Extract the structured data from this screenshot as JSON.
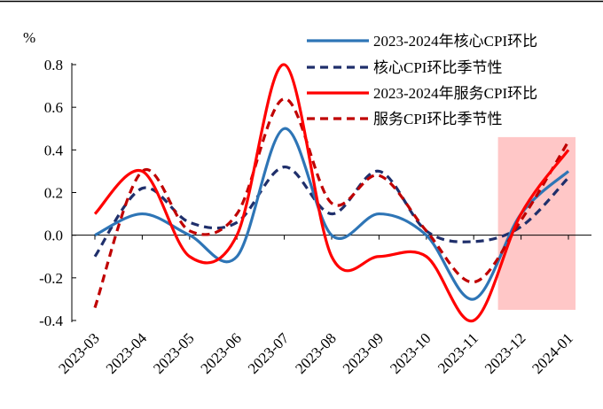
{
  "chart_data": {
    "type": "line",
    "unit_label": "%",
    "x": [
      "2023-03",
      "2023-04",
      "2023-05",
      "2023-06",
      "2023-07",
      "2023-08",
      "2023-09",
      "2023-10",
      "2023-11",
      "2023-12",
      "2024-01"
    ],
    "ylim": [
      -0.4,
      0.8
    ],
    "yticks": [
      "0.8",
      "0.6",
      "0.4",
      "0.2",
      "0.0",
      "-0.2",
      "-0.4"
    ],
    "yticks_values": [
      0.8,
      0.6,
      0.4,
      0.2,
      0.0,
      -0.2,
      -0.4
    ],
    "series": [
      {
        "name": "2023-2024年核心CPI环比",
        "color": "#2e75b6",
        "dash": false,
        "values": [
          0.0,
          0.1,
          0.0,
          -0.1,
          0.5,
          0.0,
          0.1,
          0.0,
          -0.3,
          0.1,
          0.3
        ]
      },
      {
        "name": "核心CPI环比季节性",
        "color": "#1f2f6b",
        "dash": true,
        "values": [
          -0.1,
          0.22,
          0.06,
          0.06,
          0.32,
          0.1,
          0.3,
          0.02,
          -0.03,
          0.04,
          0.27
        ]
      },
      {
        "name": "2023-2024年服务CPI环比",
        "color": "#ff0000",
        "dash": false,
        "values": [
          0.1,
          0.3,
          -0.1,
          0.0,
          0.8,
          -0.1,
          -0.1,
          -0.1,
          -0.4,
          0.1,
          0.4
        ]
      },
      {
        "name": "服务CPI环比季节性",
        "color": "#c00000",
        "dash": true,
        "values": [
          -0.34,
          0.3,
          0.02,
          0.1,
          0.64,
          0.15,
          0.28,
          0.02,
          -0.22,
          0.07,
          0.44
        ]
      }
    ],
    "highlight": {
      "from_category": "2023-12",
      "to_category": "2024-01",
      "color": "#ffc7c7",
      "ymin": -0.35,
      "ymax": 0.46
    },
    "grid": false,
    "legend_position": "top-right"
  }
}
